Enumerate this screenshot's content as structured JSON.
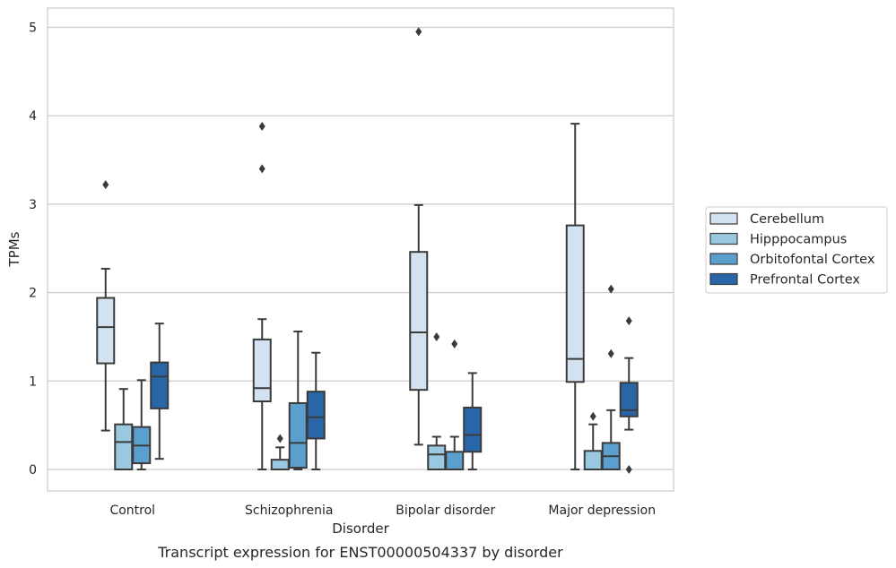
{
  "chart_data": {
    "type": "box",
    "title": "",
    "caption": "Transcript expression for ENST00000504337 by disorder",
    "xlabel": "Disorder",
    "ylabel": "TPMs",
    "ylim": [
      -0.25,
      5.2
    ],
    "yticks": [
      0,
      1,
      2,
      3,
      4,
      5
    ],
    "grid": true,
    "legend_position": "right",
    "categories": [
      "Control",
      "Schizophrenia",
      "Bipolar disorder",
      "Major depression"
    ],
    "series": [
      {
        "name": "Cerebellum",
        "color": "#d2e2f1",
        "boxes": [
          {
            "whisker_low": 0.44,
            "q1": 1.2,
            "median": 1.61,
            "q3": 1.94,
            "whisker_high": 2.27,
            "outliers": [
              3.22
            ]
          },
          {
            "whisker_low": 0.0,
            "q1": 0.77,
            "median": 0.92,
            "q3": 1.47,
            "whisker_high": 1.7,
            "outliers": [
              3.4,
              3.88
            ]
          },
          {
            "whisker_low": 0.28,
            "q1": 0.9,
            "median": 1.55,
            "q3": 2.46,
            "whisker_high": 2.99,
            "outliers": [
              4.95
            ]
          },
          {
            "whisker_low": 0.0,
            "q1": 0.99,
            "median": 1.25,
            "q3": 2.76,
            "whisker_high": 3.91,
            "outliers": []
          }
        ]
      },
      {
        "name": "Hipppocampus",
        "color": "#9ac8e0",
        "boxes": [
          {
            "whisker_low": 0.0,
            "q1": 0.0,
            "median": 0.31,
            "q3": 0.51,
            "whisker_high": 0.91,
            "outliers": []
          },
          {
            "whisker_low": 0.0,
            "q1": 0.0,
            "median": 0.0,
            "q3": 0.11,
            "whisker_high": 0.25,
            "outliers": [
              0.35
            ]
          },
          {
            "whisker_low": 0.0,
            "q1": 0.0,
            "median": 0.17,
            "q3": 0.27,
            "whisker_high": 0.37,
            "outliers": [
              1.5
            ]
          },
          {
            "whisker_low": 0.0,
            "q1": 0.0,
            "median": 0.0,
            "q3": 0.21,
            "whisker_high": 0.51,
            "outliers": [
              0.6
            ]
          }
        ]
      },
      {
        "name": "Orbitofontal Cortex",
        "color": "#5a9fcd",
        "boxes": [
          {
            "whisker_low": 0.0,
            "q1": 0.07,
            "median": 0.27,
            "q3": 0.48,
            "whisker_high": 1.01,
            "outliers": []
          },
          {
            "whisker_low": 0.0,
            "q1": 0.02,
            "median": 0.3,
            "q3": 0.75,
            "whisker_high": 1.56,
            "outliers": []
          },
          {
            "whisker_low": 0.0,
            "q1": 0.0,
            "median": 0.0,
            "q3": 0.2,
            "whisker_high": 0.37,
            "outliers": [
              1.42
            ]
          },
          {
            "whisker_low": 0.0,
            "q1": 0.0,
            "median": 0.15,
            "q3": 0.3,
            "whisker_high": 0.67,
            "outliers": [
              1.31,
              2.04
            ]
          }
        ]
      },
      {
        "name": "Prefrontal Cortex",
        "color": "#2866a8",
        "boxes": [
          {
            "whisker_low": 0.12,
            "q1": 0.69,
            "median": 1.05,
            "q3": 1.21,
            "whisker_high": 1.65,
            "outliers": []
          },
          {
            "whisker_low": 0.0,
            "q1": 0.35,
            "median": 0.59,
            "q3": 0.88,
            "whisker_high": 1.32,
            "outliers": []
          },
          {
            "whisker_low": 0.0,
            "q1": 0.2,
            "median": 0.39,
            "q3": 0.7,
            "whisker_high": 1.09,
            "outliers": []
          },
          {
            "whisker_low": 0.45,
            "q1": 0.6,
            "median": 0.67,
            "q3": 0.98,
            "whisker_high": 1.26,
            "outliers": [
              0.0,
              1.68
            ]
          }
        ]
      }
    ]
  }
}
